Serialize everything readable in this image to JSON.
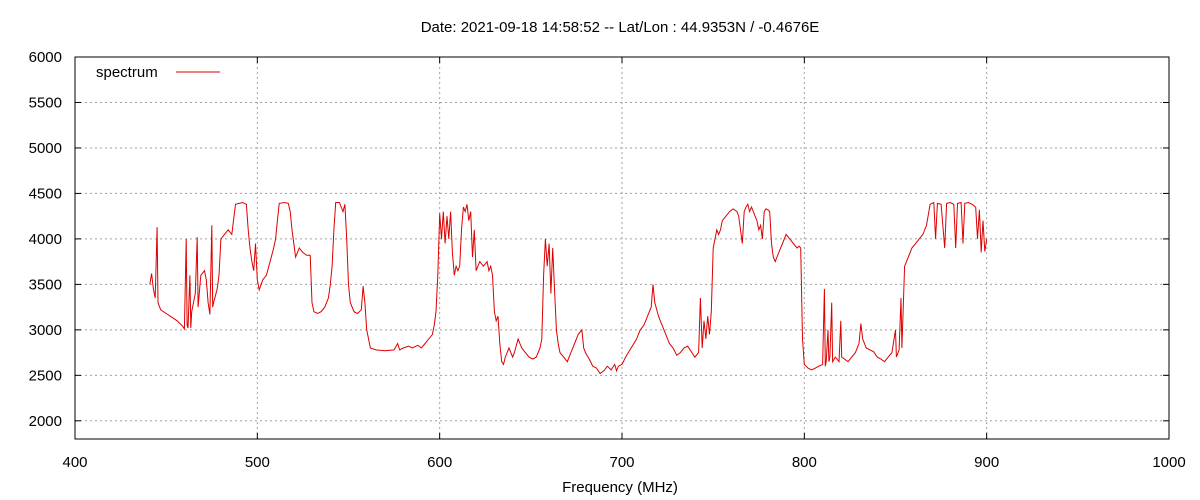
{
  "chart_data": {
    "type": "line",
    "title": "Date: 2021-09-18 14:58:52  --  Lat/Lon : 44.9353N / -0.4676E",
    "xlabel": "Frequency (MHz)",
    "ylabel": "",
    "xlim": [
      400,
      1000
    ],
    "ylim": [
      1800,
      6000
    ],
    "x_ticks": [
      400,
      500,
      600,
      700,
      800,
      900,
      1000
    ],
    "y_ticks": [
      2000,
      2500,
      3000,
      3500,
      4000,
      4500,
      5000,
      5500,
      6000
    ],
    "grid": true,
    "legend_position": "top-left",
    "series": [
      {
        "name": "spectrum",
        "color": "#dd0000",
        "points": [
          [
            441,
            3500
          ],
          [
            442,
            3620
          ],
          [
            443,
            3450
          ],
          [
            444,
            3350
          ],
          [
            445,
            4130
          ],
          [
            445.5,
            3300
          ],
          [
            447,
            3220
          ],
          [
            450,
            3180
          ],
          [
            453,
            3140
          ],
          [
            456,
            3100
          ],
          [
            459,
            3040
          ],
          [
            460,
            3010
          ],
          [
            461,
            4000
          ],
          [
            461.5,
            3050
          ],
          [
            462,
            3020
          ],
          [
            463,
            3600
          ],
          [
            463.5,
            3020
          ],
          [
            464,
            3200
          ],
          [
            466,
            3400
          ],
          [
            467,
            4020
          ],
          [
            467.5,
            3250
          ],
          [
            469,
            3600
          ],
          [
            471,
            3650
          ],
          [
            472,
            3550
          ],
          [
            473,
            3300
          ],
          [
            474,
            3170
          ],
          [
            475,
            4150
          ],
          [
            475.5,
            3250
          ],
          [
            476,
            3300
          ],
          [
            478,
            3450
          ],
          [
            479,
            3600
          ],
          [
            480,
            4000
          ],
          [
            482,
            4050
          ],
          [
            484,
            4100
          ],
          [
            486,
            4050
          ],
          [
            488,
            4380
          ],
          [
            490,
            4390
          ],
          [
            492,
            4400
          ],
          [
            494,
            4380
          ],
          [
            495,
            4100
          ],
          [
            496,
            3900
          ],
          [
            497,
            3750
          ],
          [
            498,
            3650
          ],
          [
            499,
            3950
          ],
          [
            500,
            3550
          ],
          [
            501,
            3440
          ],
          [
            503,
            3550
          ],
          [
            505,
            3600
          ],
          [
            507,
            3750
          ],
          [
            509,
            3900
          ],
          [
            510,
            4000
          ],
          [
            511,
            4200
          ],
          [
            512,
            4390
          ],
          [
            515,
            4400
          ],
          [
            517,
            4390
          ],
          [
            518,
            4300
          ],
          [
            519,
            4100
          ],
          [
            520,
            3950
          ],
          [
            521,
            3800
          ],
          [
            523,
            3900
          ],
          [
            525,
            3850
          ],
          [
            527,
            3820
          ],
          [
            529,
            3820
          ],
          [
            530,
            3300
          ],
          [
            531,
            3200
          ],
          [
            533,
            3180
          ],
          [
            535,
            3200
          ],
          [
            537,
            3250
          ],
          [
            539,
            3350
          ],
          [
            540,
            3500
          ],
          [
            541,
            3700
          ],
          [
            542,
            4100
          ],
          [
            543,
            4400
          ],
          [
            545,
            4400
          ],
          [
            547,
            4300
          ],
          [
            548,
            4380
          ],
          [
            549,
            4000
          ],
          [
            550,
            3500
          ],
          [
            551,
            3300
          ],
          [
            553,
            3200
          ],
          [
            555,
            3180
          ],
          [
            557,
            3220
          ],
          [
            558,
            3480
          ],
          [
            559,
            3300
          ],
          [
            560,
            3000
          ],
          [
            562,
            2800
          ],
          [
            565,
            2780
          ],
          [
            570,
            2770
          ],
          [
            575,
            2780
          ],
          [
            577,
            2850
          ],
          [
            578,
            2780
          ],
          [
            580,
            2800
          ],
          [
            583,
            2820
          ],
          [
            585,
            2800
          ],
          [
            588,
            2830
          ],
          [
            590,
            2800
          ],
          [
            592,
            2850
          ],
          [
            594,
            2900
          ],
          [
            596,
            2950
          ],
          [
            597,
            3050
          ],
          [
            598,
            3200
          ],
          [
            599,
            3600
          ],
          [
            600,
            4280
          ],
          [
            601,
            4000
          ],
          [
            602,
            4300
          ],
          [
            603,
            3950
          ],
          [
            604,
            4250
          ],
          [
            605,
            4000
          ],
          [
            606,
            4300
          ],
          [
            607,
            3850
          ],
          [
            608,
            3600
          ],
          [
            609,
            3700
          ],
          [
            610,
            3650
          ],
          [
            611,
            3700
          ],
          [
            612,
            4100
          ],
          [
            613,
            4350
          ],
          [
            614,
            4300
          ],
          [
            615,
            4380
          ],
          [
            616,
            4200
          ],
          [
            617,
            4300
          ],
          [
            618,
            3800
          ],
          [
            619,
            4100
          ],
          [
            620,
            3650
          ],
          [
            622,
            3750
          ],
          [
            624,
            3700
          ],
          [
            626,
            3750
          ],
          [
            627,
            3650
          ],
          [
            628,
            3700
          ],
          [
            629,
            3600
          ],
          [
            630,
            3200
          ],
          [
            631,
            3100
          ],
          [
            632,
            3150
          ],
          [
            633,
            2850
          ],
          [
            634,
            2650
          ],
          [
            635,
            2620
          ],
          [
            636,
            2700
          ],
          [
            638,
            2800
          ],
          [
            640,
            2700
          ],
          [
            641,
            2750
          ],
          [
            643,
            2900
          ],
          [
            645,
            2800
          ],
          [
            647,
            2750
          ],
          [
            649,
            2700
          ],
          [
            651,
            2680
          ],
          [
            653,
            2700
          ],
          [
            655,
            2800
          ],
          [
            656,
            2900
          ],
          [
            657,
            3600
          ],
          [
            658,
            4000
          ],
          [
            659,
            3700
          ],
          [
            660,
            3950
          ],
          [
            661,
            3400
          ],
          [
            662,
            3900
          ],
          [
            663,
            3450
          ],
          [
            664,
            3000
          ],
          [
            665,
            2850
          ],
          [
            666,
            2750
          ],
          [
            668,
            2700
          ],
          [
            670,
            2650
          ],
          [
            672,
            2750
          ],
          [
            674,
            2850
          ],
          [
            676,
            2950
          ],
          [
            678,
            3000
          ],
          [
            679,
            2800
          ],
          [
            680,
            2750
          ],
          [
            682,
            2680
          ],
          [
            684,
            2600
          ],
          [
            686,
            2580
          ],
          [
            688,
            2520
          ],
          [
            690,
            2550
          ],
          [
            692,
            2600
          ],
          [
            694,
            2560
          ],
          [
            696,
            2620
          ],
          [
            697,
            2550
          ],
          [
            698,
            2600
          ],
          [
            700,
            2620
          ],
          [
            702,
            2700
          ],
          [
            705,
            2800
          ],
          [
            708,
            2900
          ],
          [
            710,
            3000
          ],
          [
            712,
            3050
          ],
          [
            714,
            3150
          ],
          [
            716,
            3250
          ],
          [
            717,
            3500
          ],
          [
            718,
            3300
          ],
          [
            720,
            3150
          ],
          [
            722,
            3050
          ],
          [
            724,
            2950
          ],
          [
            726,
            2850
          ],
          [
            728,
            2800
          ],
          [
            730,
            2720
          ],
          [
            732,
            2750
          ],
          [
            734,
            2800
          ],
          [
            736,
            2820
          ],
          [
            738,
            2760
          ],
          [
            740,
            2700
          ],
          [
            742,
            2750
          ],
          [
            743,
            3350
          ],
          [
            744,
            2800
          ],
          [
            745,
            3100
          ],
          [
            746,
            2900
          ],
          [
            747,
            3150
          ],
          [
            748,
            2950
          ],
          [
            749,
            3200
          ],
          [
            750,
            3900
          ],
          [
            751,
            4000
          ],
          [
            752,
            4100
          ],
          [
            753,
            4050
          ],
          [
            754,
            4100
          ],
          [
            755,
            4200
          ],
          [
            757,
            4250
          ],
          [
            759,
            4300
          ],
          [
            761,
            4330
          ],
          [
            763,
            4300
          ],
          [
            764,
            4250
          ],
          [
            765,
            4100
          ],
          [
            766,
            3950
          ],
          [
            767,
            4300
          ],
          [
            768,
            4350
          ],
          [
            769,
            4380
          ],
          [
            770,
            4300
          ],
          [
            771,
            4350
          ],
          [
            772,
            4300
          ],
          [
            773,
            4250
          ],
          [
            774,
            4200
          ],
          [
            775,
            4100
          ],
          [
            776,
            4150
          ],
          [
            777,
            4000
          ],
          [
            778,
            4300
          ],
          [
            779,
            4330
          ],
          [
            780,
            4320
          ],
          [
            781,
            4300
          ],
          [
            782,
            3950
          ],
          [
            783,
            3800
          ],
          [
            784,
            3750
          ],
          [
            786,
            3850
          ],
          [
            788,
            3950
          ],
          [
            790,
            4050
          ],
          [
            792,
            4000
          ],
          [
            794,
            3950
          ],
          [
            796,
            3900
          ],
          [
            797,
            3920
          ],
          [
            798,
            3900
          ],
          [
            799,
            2900
          ],
          [
            800,
            2620
          ],
          [
            802,
            2580
          ],
          [
            804,
            2560
          ],
          [
            806,
            2580
          ],
          [
            808,
            2600
          ],
          [
            810,
            2620
          ],
          [
            811,
            3450
          ],
          [
            811.5,
            2600
          ],
          [
            812,
            2650
          ],
          [
            813,
            3000
          ],
          [
            813.5,
            2650
          ],
          [
            814,
            2700
          ],
          [
            815,
            3300
          ],
          [
            815.5,
            2650
          ],
          [
            817,
            2700
          ],
          [
            819,
            2650
          ],
          [
            820,
            3100
          ],
          [
            820.5,
            2700
          ],
          [
            822,
            2680
          ],
          [
            824,
            2650
          ],
          [
            826,
            2700
          ],
          [
            828,
            2750
          ],
          [
            830,
            2850
          ],
          [
            831,
            3070
          ],
          [
            832,
            2900
          ],
          [
            834,
            2800
          ],
          [
            836,
            2780
          ],
          [
            838,
            2760
          ],
          [
            840,
            2700
          ],
          [
            842,
            2680
          ],
          [
            844,
            2650
          ],
          [
            846,
            2700
          ],
          [
            848,
            2750
          ],
          [
            850,
            3000
          ],
          [
            850.5,
            2700
          ],
          [
            852,
            2780
          ],
          [
            853,
            3350
          ],
          [
            853.5,
            2800
          ],
          [
            855,
            3700
          ],
          [
            857,
            3800
          ],
          [
            859,
            3900
          ],
          [
            861,
            3950
          ],
          [
            863,
            4000
          ],
          [
            865,
            4050
          ],
          [
            867,
            4150
          ],
          [
            869,
            4380
          ],
          [
            871,
            4400
          ],
          [
            872,
            4000
          ],
          [
            873,
            4390
          ],
          [
            875,
            4380
          ],
          [
            877,
            3900
          ],
          [
            878,
            4390
          ],
          [
            880,
            4400
          ],
          [
            882,
            4380
          ],
          [
            883,
            3900
          ],
          [
            884,
            4390
          ],
          [
            886,
            4400
          ],
          [
            887,
            3950
          ],
          [
            888,
            4390
          ],
          [
            890,
            4400
          ],
          [
            892,
            4380
          ],
          [
            894,
            4350
          ],
          [
            895,
            4000
          ],
          [
            896,
            4320
          ],
          [
            897,
            3850
          ],
          [
            898,
            4200
          ],
          [
            899,
            3860
          ],
          [
            900,
            4000
          ]
        ]
      }
    ]
  }
}
